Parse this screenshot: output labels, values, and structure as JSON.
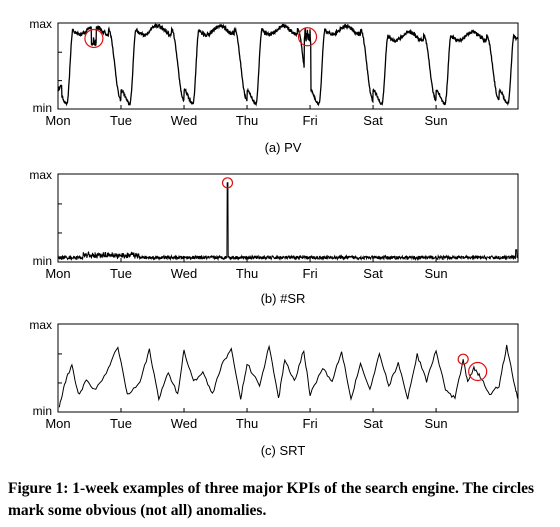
{
  "caption": "Figure 1: 1-week examples of three major KPIs of the search engine. The circles mark some obvious (not all) anomalies.",
  "chart_data": [
    {
      "type": "line",
      "title": "(a) PV",
      "y_tick_labels": [
        "max",
        "min"
      ],
      "ylim": [
        0,
        1
      ],
      "x_tick_labels": [
        "Mon",
        "Tue",
        "Wed",
        "Thu",
        "Fri",
        "Sat",
        "Sun"
      ],
      "xlim": [
        0,
        7.3
      ],
      "grid": false,
      "pattern": "daily cycle, high during day, low at night",
      "anomalies": [
        {
          "x": 0.57,
          "y": 0.82
        },
        {
          "x": 3.96,
          "y": 0.84
        }
      ]
    },
    {
      "type": "line",
      "title": "(b) #SR",
      "y_tick_labels": [
        "max",
        "min"
      ],
      "ylim": [
        0,
        1
      ],
      "x_tick_labels": [
        "Mon",
        "Tue",
        "Wed",
        "Thu",
        "Fri",
        "Sat",
        "Sun"
      ],
      "xlim": [
        0,
        7.3
      ],
      "grid": false,
      "pattern": "near-min noisy baseline with a single spike",
      "anomalies": [
        {
          "x": 2.69,
          "y": 0.9
        }
      ]
    },
    {
      "type": "line",
      "title": "(c) SRT",
      "y_tick_labels": [
        "max",
        "min"
      ],
      "ylim": [
        0,
        1
      ],
      "x_tick_labels": [
        "Mon",
        "Tue",
        "Wed",
        "Thu",
        "Fri",
        "Sat",
        "Sun"
      ],
      "xlim": [
        0,
        7.3
      ],
      "grid": false,
      "pattern": "irregular oscillation between min and max",
      "anomalies": [
        {
          "x": 6.43,
          "y": 0.6
        },
        {
          "x": 6.66,
          "y": 0.46
        }
      ]
    }
  ]
}
